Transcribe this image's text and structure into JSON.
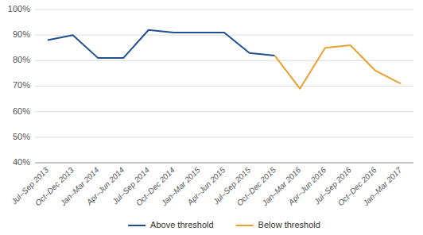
{
  "chart_data": {
    "type": "line",
    "categories": [
      "Jul–Sep 2013",
      "Oct–Dec 2013",
      "Jan–Mar 2014",
      "Apr–Jun 2014",
      "Jul–Sep 2014",
      "Oct–Dec 2014",
      "Jan–Mar 2015",
      "Apr–Jun 2015",
      "Jul–Sep 2015",
      "Oct–Dec 2015",
      "Jan–Mar 2016",
      "Apr–Jun 2016",
      "Jul–Sep 2016",
      "Oct–Dec 2016",
      "Jan–Mar 2017"
    ],
    "series": [
      {
        "name": "Above threshold",
        "color": "#1F4E91",
        "values": [
          88,
          90,
          81,
          81,
          92,
          91,
          91,
          91,
          83,
          82,
          null,
          null,
          null,
          null,
          null
        ]
      },
      {
        "name": "Below threshold",
        "color": "#E8A030",
        "values": [
          null,
          null,
          null,
          null,
          null,
          null,
          null,
          null,
          null,
          82,
          69,
          85,
          86,
          76,
          71
        ]
      }
    ],
    "ylim": [
      40,
      100
    ],
    "yticks": [
      {
        "value": 40,
        "label": "40%"
      },
      {
        "value": 50,
        "label": "50%"
      },
      {
        "value": 60,
        "label": "60%"
      },
      {
        "value": 70,
        "label": "70%"
      },
      {
        "value": 80,
        "label": "80%"
      },
      {
        "value": 90,
        "label": "90%"
      },
      {
        "value": 100,
        "label": "100%"
      }
    ],
    "grid": true,
    "legend": "bottom"
  }
}
